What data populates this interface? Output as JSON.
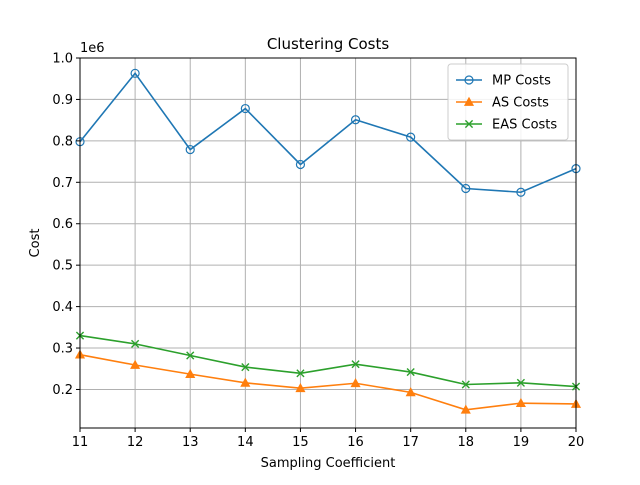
{
  "chart_data": {
    "type": "line",
    "title": "Clustering Costs",
    "xlabel": "Sampling Coefficient",
    "ylabel": "Cost",
    "y_offset_label": "1e6",
    "x": [
      11,
      12,
      13,
      14,
      15,
      16,
      17,
      18,
      19,
      20
    ],
    "xlim": [
      11,
      20
    ],
    "ylim": [
      0.107,
      1.0
    ],
    "x_ticks": [
      "11",
      "12",
      "13",
      "14",
      "15",
      "16",
      "17",
      "18",
      "19",
      "20"
    ],
    "y_ticks": [
      {
        "value": 0.2,
        "label": "0.2"
      },
      {
        "value": 0.3,
        "label": "0.3"
      },
      {
        "value": 0.4,
        "label": "0.4"
      },
      {
        "value": 0.5,
        "label": "0.5"
      },
      {
        "value": 0.6,
        "label": "0.6"
      },
      {
        "value": 0.7,
        "label": "0.7"
      },
      {
        "value": 0.8,
        "label": "0.8"
      },
      {
        "value": 0.9,
        "label": "0.9"
      },
      {
        "value": 1.0,
        "label": "1.0"
      }
    ],
    "grid": true,
    "legend_position": "upper-right",
    "series": [
      {
        "name": "MP Costs",
        "color": "#1f77b4",
        "marker": "circle",
        "values": [
          0.798,
          0.963,
          0.779,
          0.878,
          0.743,
          0.851,
          0.809,
          0.685,
          0.676,
          0.733
        ]
      },
      {
        "name": "AS Costs",
        "color": "#ff7f0e",
        "marker": "triangle",
        "values": [
          0.284,
          0.259,
          0.237,
          0.216,
          0.203,
          0.215,
          0.193,
          0.151,
          0.167,
          0.165
        ]
      },
      {
        "name": "EAS Costs",
        "color": "#2ca02c",
        "marker": "x",
        "values": [
          0.33,
          0.31,
          0.282,
          0.254,
          0.239,
          0.261,
          0.242,
          0.212,
          0.216,
          0.207
        ]
      }
    ]
  }
}
